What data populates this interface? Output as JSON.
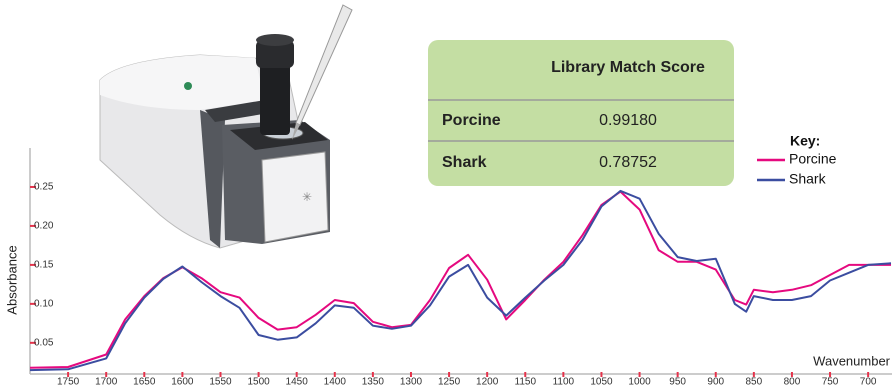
{
  "chart_data": {
    "type": "line",
    "y_label": "Absorbance",
    "x_label": "Wavenumber",
    "legend_title": "Key:",
    "legend_position": "upper right",
    "x": [
      1800,
      1750,
      1700,
      1675,
      1650,
      1625,
      1600,
      1575,
      1550,
      1525,
      1500,
      1475,
      1450,
      1425,
      1400,
      1375,
      1350,
      1325,
      1300,
      1275,
      1250,
      1225,
      1200,
      1175,
      1150,
      1125,
      1100,
      1075,
      1050,
      1025,
      1000,
      975,
      950,
      925,
      900,
      875,
      860,
      850,
      825,
      800,
      775,
      750,
      725,
      700,
      670
    ],
    "series": [
      {
        "name": "Porcine",
        "color": "#e5097f",
        "values": [
          0.018,
          0.019,
          0.035,
          0.08,
          0.11,
          0.133,
          0.147,
          0.133,
          0.115,
          0.108,
          0.082,
          0.067,
          0.07,
          0.086,
          0.105,
          0.101,
          0.077,
          0.07,
          0.073,
          0.105,
          0.146,
          0.163,
          0.131,
          0.08,
          0.105,
          0.131,
          0.154,
          0.188,
          0.227,
          0.244,
          0.221,
          0.169,
          0.154,
          0.154,
          0.144,
          0.105,
          0.099,
          0.118,
          0.115,
          0.118,
          0.124,
          0.137,
          0.15,
          0.15,
          0.15
        ]
      },
      {
        "name": "Shark",
        "color": "#3b4da0",
        "values": [
          0.015,
          0.016,
          0.03,
          0.075,
          0.108,
          0.132,
          0.148,
          0.128,
          0.11,
          0.095,
          0.06,
          0.054,
          0.057,
          0.075,
          0.098,
          0.095,
          0.072,
          0.068,
          0.072,
          0.098,
          0.135,
          0.15,
          0.108,
          0.085,
          0.108,
          0.13,
          0.15,
          0.182,
          0.225,
          0.245,
          0.235,
          0.19,
          0.16,
          0.155,
          0.158,
          0.1,
          0.09,
          0.11,
          0.105,
          0.105,
          0.11,
          0.13,
          0.14,
          0.15,
          0.152
        ]
      }
    ],
    "xlim": [
      1800,
      670
    ],
    "ylim": [
      0.01,
      0.3
    ],
    "xticks": [
      1750,
      1700,
      1650,
      1600,
      1550,
      1500,
      1450,
      1400,
      1350,
      1300,
      1250,
      1200,
      1150,
      1100,
      1050,
      1000,
      950,
      900,
      850,
      800,
      750,
      700
    ],
    "yticks": [
      {
        "value": 0.05,
        "label": "0.05"
      },
      {
        "value": 0.1,
        "label": "0.10"
      },
      {
        "value": 0.15,
        "label": "0.15"
      },
      {
        "value": 0.2,
        "label": "0.20"
      },
      {
        "value": 0.25,
        "label": "0.25"
      }
    ],
    "tick_color": "#e5334b",
    "grid": false
  },
  "table": {
    "header": "Library Match Score",
    "rows": [
      [
        "Porcine",
        "0.99180"
      ],
      [
        "Shark",
        "0.78752"
      ]
    ]
  }
}
